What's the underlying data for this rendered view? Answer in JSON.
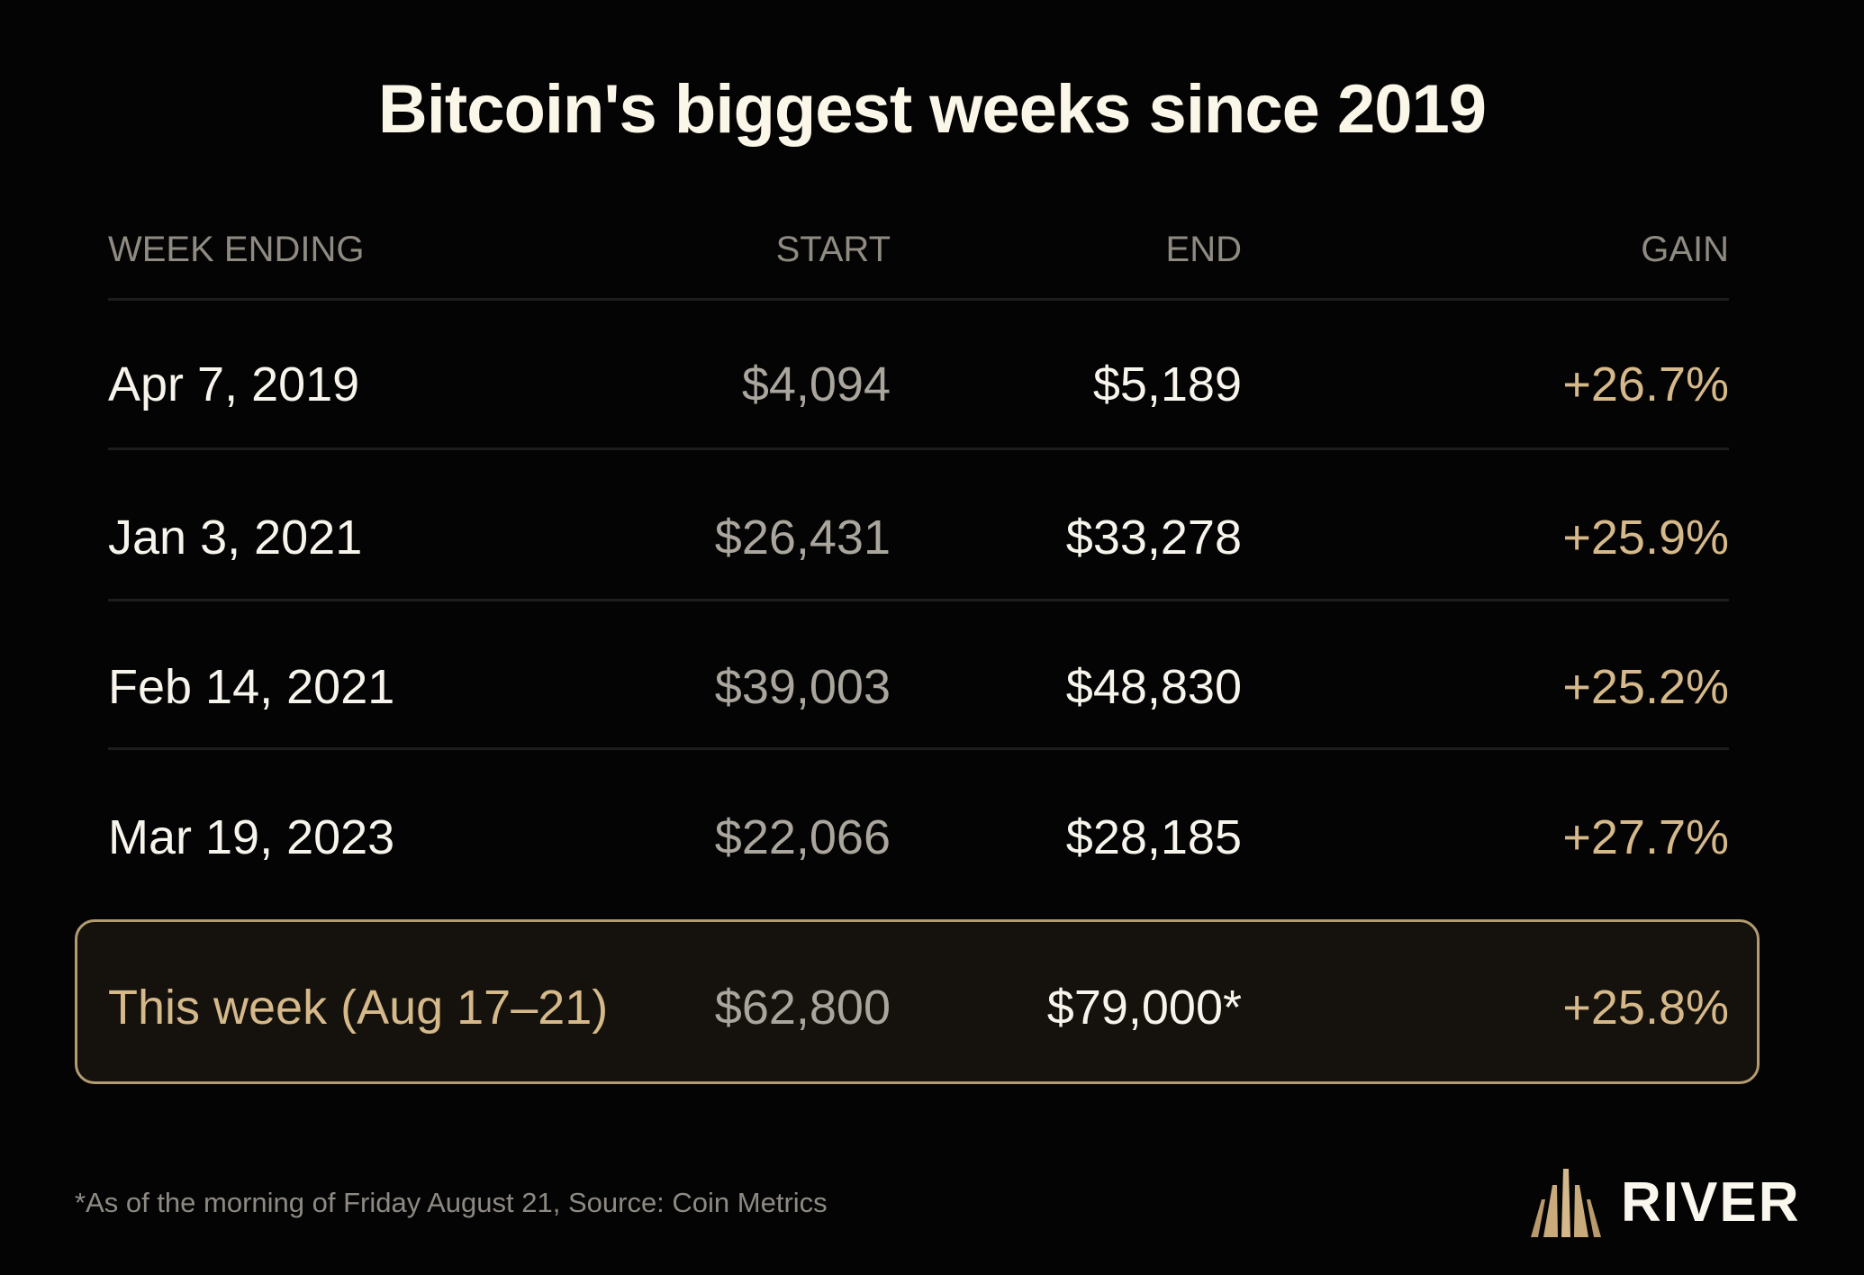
{
  "title": "Bitcoin's biggest weeks since 2019",
  "headers": {
    "week": "WEEK ENDING",
    "start": "START",
    "end": "END",
    "gain": "GAIN"
  },
  "chart_data": {
    "type": "table",
    "title": "Bitcoin's biggest weeks since 2019",
    "columns": [
      "WEEK ENDING",
      "START",
      "END",
      "GAIN"
    ],
    "rows": [
      {
        "week": "Apr 7, 2019",
        "start": "$4,094",
        "end": "$5,189",
        "gain": "+26.7%"
      },
      {
        "week": "Jan 3, 2021",
        "start": "$26,431",
        "end": "$33,278",
        "gain": "+25.9%"
      },
      {
        "week": "Feb 14, 2021",
        "start": "$39,003",
        "end": "$48,830",
        "gain": "+25.2%"
      },
      {
        "week": "Mar 19, 2023",
        "start": "$22,066",
        "end": "$28,185",
        "gain": "+27.7%"
      },
      {
        "week": "This week (Aug 17–21)",
        "start": "$62,800",
        "end": "$79,000*",
        "gain": "+25.8%",
        "highlighted": true
      }
    ]
  },
  "footnote": "*As of the morning of Friday August 21, Source: Coin Metrics",
  "brand": {
    "name": "RIVER",
    "icon": "river-logo-icon",
    "accent": "#d6b98a"
  }
}
